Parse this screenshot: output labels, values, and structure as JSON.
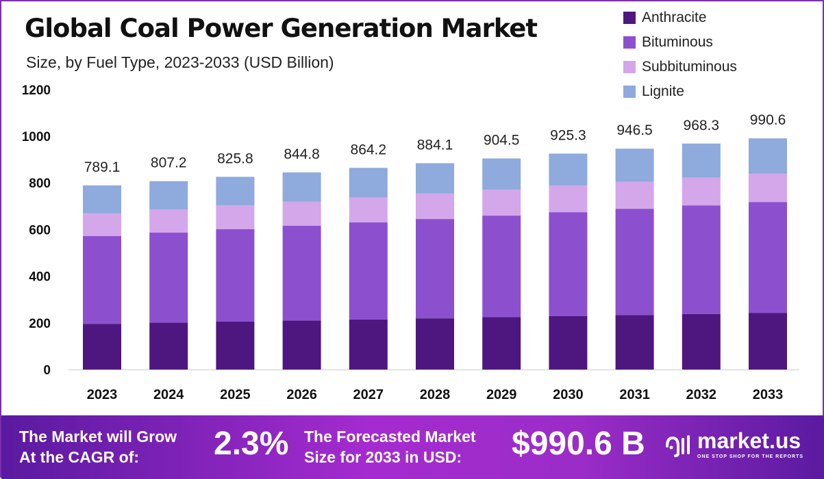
{
  "chart_data": {
    "type": "bar",
    "stacked": true,
    "title": "Global Coal Power Generation Market",
    "subtitle": "Size, by Fuel Type, 2023-2033 (USD Billion)",
    "categories": [
      "2023",
      "2024",
      "2025",
      "2026",
      "2027",
      "2028",
      "2029",
      "2030",
      "2031",
      "2032",
      "2033"
    ],
    "totals": [
      "789.1",
      "807.2",
      "825.8",
      "844.8",
      "864.2",
      "884.1",
      "904.5",
      "925.3",
      "946.5",
      "968.3",
      "990.6"
    ],
    "series": [
      {
        "name": "Anthracite",
        "color": "#4e1780",
        "values": [
          196,
          200.7,
          205.4,
          210.1,
          214.8,
          219.5,
          224.2,
          228.9,
          233.6,
          238.3,
          243
        ]
      },
      {
        "name": "Bituminous",
        "color": "#8c50cf",
        "values": [
          376,
          385.9,
          395.8,
          405.7,
          415.6,
          425.5,
          435.4,
          445.3,
          455.2,
          465.1,
          475
        ]
      },
      {
        "name": "Subbituminous",
        "color": "#d3a7ea",
        "values": [
          97,
          99.4,
          101.8,
          104.2,
          106.6,
          109,
          111.4,
          113.8,
          116.2,
          118.6,
          121
        ]
      },
      {
        "name": "Lignite",
        "color": "#8faadc",
        "values": [
          120.1,
          121.2,
          122.8,
          124.8,
          127.2,
          130.1,
          133.5,
          137.3,
          141.5,
          146.3,
          151.6
        ]
      }
    ],
    "yticks": [
      "0",
      "200",
      "400",
      "600",
      "800",
      "1000",
      "1200"
    ],
    "ylim": [
      0,
      1200
    ],
    "legend_position": "top-right"
  },
  "footer": {
    "cagr_label_1": "The Market will Grow",
    "cagr_label_2": "At the CAGR of:",
    "cagr_value": "2.3%",
    "forecast_label_1": "The Forecasted Market",
    "forecast_label_2": "Size for 2033 in USD:",
    "forecast_value": "$990.6 B",
    "brand": "market.us",
    "tagline": "ONE STOP SHOP FOR THE REPORTS"
  }
}
